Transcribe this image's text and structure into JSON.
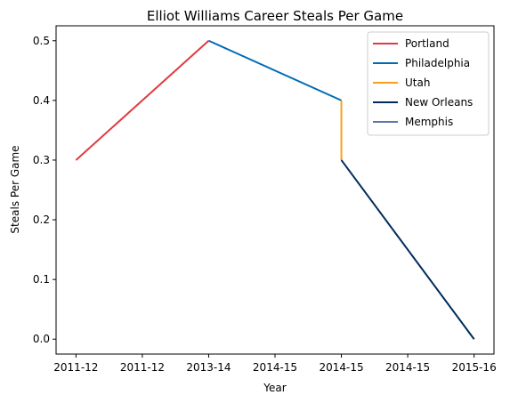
{
  "chart_data": {
    "type": "line",
    "title": "Elliot Williams Career Steals Per Game",
    "xlabel": "Year",
    "ylabel": "Steals Per Game",
    "x_tick_labels": [
      "2011-12",
      "2011-12",
      "2013-14",
      "2014-15",
      "2014-15",
      "2014-15",
      "2015-16"
    ],
    "ylim": [
      -0.025,
      0.525
    ],
    "y_ticks": [
      0.0,
      0.1,
      0.2,
      0.3,
      0.4,
      0.5
    ],
    "y_tick_labels": [
      "0.0",
      "0.1",
      "0.2",
      "0.3",
      "0.4",
      "0.5"
    ],
    "grid": false,
    "legend_position": "top-right",
    "series": [
      {
        "name": "Portland",
        "color": "#E03A3E",
        "points": [
          [
            0,
            0.3
          ],
          [
            2,
            0.5
          ]
        ]
      },
      {
        "name": "Philadelphia",
        "color": "#006BB6",
        "points": [
          [
            2,
            0.5
          ],
          [
            4,
            0.4
          ]
        ]
      },
      {
        "name": "Utah",
        "color": "#F9A01B",
        "points": [
          [
            4,
            0.4
          ],
          [
            4,
            0.3
          ]
        ]
      },
      {
        "name": "New Orleans",
        "color": "#002B5C",
        "points": [
          [
            4,
            0.3
          ],
          [
            6,
            0.0
          ]
        ]
      },
      {
        "name": "Memphis",
        "color": "#5D76A9",
        "points": []
      }
    ]
  }
}
